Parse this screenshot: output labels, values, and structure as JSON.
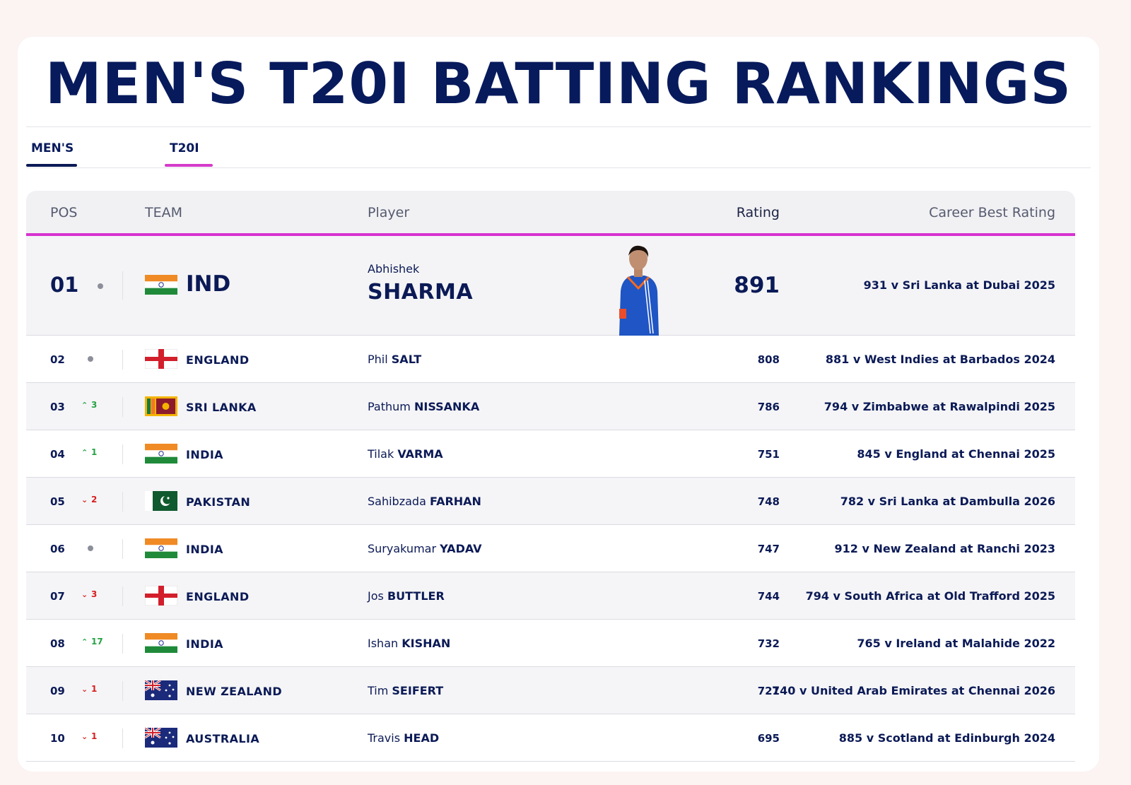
{
  "page_title": "MEN'S T20I BATTING RANKINGS",
  "tabs": [
    {
      "label": "MEN'S",
      "active": true,
      "color": "#0b1a56"
    },
    {
      "label": "T20I",
      "active": true,
      "color": "#d43cc9"
    }
  ],
  "table": {
    "columns": {
      "pos": "POS",
      "team": "TEAM",
      "player": "Player",
      "rating": "Rating",
      "best": "Career Best Rating"
    },
    "rows": [
      {
        "pos": "01",
        "movement": "none",
        "change": "",
        "flag": "india",
        "team": "IND",
        "first": "Abhishek",
        "last": "SHARMA",
        "rating": "891",
        "best": "931 v Sri Lanka at Dubai 2025"
      },
      {
        "pos": "02",
        "movement": "none",
        "change": "",
        "flag": "england",
        "team": "ENGLAND",
        "first": "Phil",
        "last": "SALT",
        "rating": "808",
        "best": "881 v West Indies at Barbados 2024"
      },
      {
        "pos": "03",
        "movement": "up",
        "change": "3",
        "flag": "sri-lanka",
        "team": "SRI LANKA",
        "first": "Pathum",
        "last": "NISSANKA",
        "rating": "786",
        "best": "794 v Zimbabwe at Rawalpindi 2025"
      },
      {
        "pos": "04",
        "movement": "up",
        "change": "1",
        "flag": "india",
        "team": "INDIA",
        "first": "Tilak",
        "last": "VARMA",
        "rating": "751",
        "best": "845 v England at Chennai 2025"
      },
      {
        "pos": "05",
        "movement": "down",
        "change": "2",
        "flag": "pakistan",
        "team": "PAKISTAN",
        "first": "Sahibzada",
        "last": "FARHAN",
        "rating": "748",
        "best": "782 v Sri Lanka at Dambulla 2026"
      },
      {
        "pos": "06",
        "movement": "none",
        "change": "",
        "flag": "india",
        "team": "INDIA",
        "first": "Suryakumar",
        "last": "YADAV",
        "rating": "747",
        "best": "912 v New Zealand at Ranchi 2023"
      },
      {
        "pos": "07",
        "movement": "down",
        "change": "3",
        "flag": "england",
        "team": "ENGLAND",
        "first": "Jos",
        "last": "BUTTLER",
        "rating": "744",
        "best": "794 v South Africa at Old Trafford 2025"
      },
      {
        "pos": "08",
        "movement": "up",
        "change": "17",
        "flag": "india",
        "team": "INDIA",
        "first": "Ishan",
        "last": "KISHAN",
        "rating": "732",
        "best": "765 v Ireland at Malahide 2022"
      },
      {
        "pos": "09",
        "movement": "down",
        "change": "1",
        "flag": "australia",
        "team": "NEW ZEALAND",
        "first": "Tim",
        "last": "SEIFERT",
        "rating": "721",
        "best": "740 v United Arab Emirates at Chennai 2026"
      },
      {
        "pos": "10",
        "movement": "down",
        "change": "1",
        "flag": "australia",
        "team": "AUSTRALIA",
        "first": "Travis",
        "last": "HEAD",
        "rating": "695",
        "best": "885 v Scotland at Edinburgh 2024"
      }
    ]
  },
  "colors": {
    "navy": "#0b1a56",
    "accent_pink": "#d633cf",
    "up": "#25a244",
    "down": "#d81e1e"
  }
}
